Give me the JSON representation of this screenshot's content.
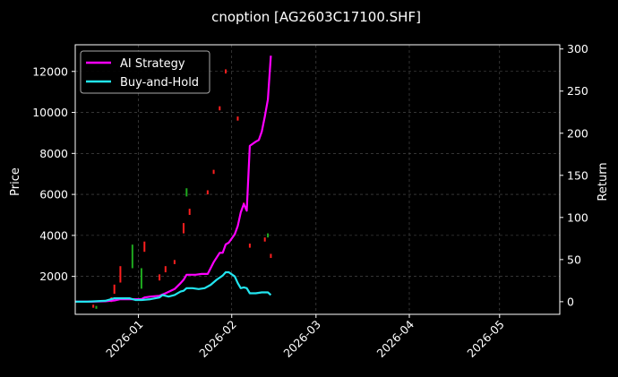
{
  "chart_data": {
    "type": "line",
    "title": "cnoption [AG2603C17100.SHF]",
    "ylabel": "Price",
    "y2label": "Return",
    "ylim": [
      150,
      13300
    ],
    "y2lim": [
      -15,
      305
    ],
    "yticks": [
      2000,
      4000,
      6000,
      8000,
      10000,
      12000
    ],
    "y2ticks": [
      0,
      50,
      100,
      150,
      200,
      250,
      300
    ],
    "xlim": [
      "2025-12-11",
      "2026-05-21"
    ],
    "xticks": [
      "2026-01",
      "2026-02",
      "2026-03",
      "2026-04",
      "2026-05"
    ],
    "grid": true,
    "legend_position": "top-left",
    "colors": {
      "background": "#000000",
      "ai_strategy": "#ff00ff",
      "buy_and_hold": "#22e5f0",
      "candle_up": "#ff1f1f",
      "candle_down": "#1faa1f"
    },
    "series": [
      {
        "name": "AI Strategy",
        "axis": "return",
        "points": [
          [
            "2025-12-11",
            0
          ],
          [
            "2025-12-16",
            0
          ],
          [
            "2025-12-21",
            0.5
          ],
          [
            "2025-12-24",
            1.5
          ],
          [
            "2025-12-26",
            3
          ],
          [
            "2025-12-30",
            3
          ],
          [
            "2026-01-02",
            3
          ],
          [
            "2026-01-03",
            5
          ],
          [
            "2026-01-05",
            6
          ],
          [
            "2026-01-08",
            7
          ],
          [
            "2026-01-10",
            10
          ],
          [
            "2026-01-13",
            15
          ],
          [
            "2026-01-15",
            22
          ],
          [
            "2026-01-16",
            26
          ],
          [
            "2026-01-17",
            32
          ],
          [
            "2026-01-20",
            32
          ],
          [
            "2026-01-22",
            33
          ],
          [
            "2026-01-24",
            33
          ],
          [
            "2026-01-26",
            47
          ],
          [
            "2026-01-28",
            58
          ],
          [
            "2026-01-29",
            58
          ],
          [
            "2026-01-30",
            68
          ],
          [
            "2026-01-31",
            70
          ],
          [
            "2026-02-02",
            80
          ],
          [
            "2026-02-03",
            90
          ],
          [
            "2026-02-04",
            106
          ],
          [
            "2026-02-05",
            116
          ],
          [
            "2026-02-06",
            108
          ],
          [
            "2026-02-07",
            185
          ],
          [
            "2026-02-09",
            190
          ],
          [
            "2026-02-10",
            192
          ],
          [
            "2026-02-11",
            202
          ],
          [
            "2026-02-12",
            220
          ],
          [
            "2026-02-13",
            240
          ],
          [
            "2026-02-14",
            292
          ]
        ]
      },
      {
        "name": "Buy-and-Hold",
        "axis": "return",
        "points": [
          [
            "2025-12-11",
            0
          ],
          [
            "2025-12-15",
            0
          ],
          [
            "2025-12-18",
            0.5
          ],
          [
            "2025-12-21",
            1
          ],
          [
            "2025-12-24",
            4
          ],
          [
            "2025-12-26",
            4
          ],
          [
            "2025-12-29",
            4
          ],
          [
            "2025-12-31",
            2
          ],
          [
            "2026-01-02",
            2
          ],
          [
            "2026-01-05",
            3
          ],
          [
            "2026-01-08",
            5
          ],
          [
            "2026-01-09",
            8
          ],
          [
            "2026-01-11",
            6
          ],
          [
            "2026-01-13",
            8
          ],
          [
            "2026-01-15",
            12
          ],
          [
            "2026-01-16",
            13
          ],
          [
            "2026-01-17",
            16
          ],
          [
            "2026-01-19",
            16
          ],
          [
            "2026-01-21",
            15
          ],
          [
            "2026-01-23",
            16
          ],
          [
            "2026-01-25",
            20
          ],
          [
            "2026-01-27",
            26
          ],
          [
            "2026-01-29",
            31
          ],
          [
            "2026-01-30",
            35
          ],
          [
            "2026-01-31",
            35
          ],
          [
            "2026-02-02",
            30
          ],
          [
            "2026-02-03",
            22
          ],
          [
            "2026-02-04",
            16
          ],
          [
            "2026-02-05",
            17
          ],
          [
            "2026-02-06",
            16
          ],
          [
            "2026-02-07",
            10
          ],
          [
            "2026-02-09",
            10
          ],
          [
            "2026-02-11",
            11
          ],
          [
            "2026-02-13",
            11
          ],
          [
            "2026-02-14",
            8
          ]
        ]
      }
    ],
    "candles": [
      {
        "date": "2025-12-17",
        "low": 470,
        "high": 620,
        "color": "up"
      },
      {
        "date": "2025-12-18",
        "low": 420,
        "high": 560,
        "color": "down"
      },
      {
        "date": "2025-12-23",
        "low": 750,
        "high": 980,
        "color": "up"
      },
      {
        "date": "2025-12-24",
        "low": 1150,
        "high": 1600,
        "color": "up"
      },
      {
        "date": "2025-12-26",
        "low": 1700,
        "high": 2500,
        "color": "up"
      },
      {
        "date": "2025-12-30",
        "low": 2400,
        "high": 3550,
        "color": "down"
      },
      {
        "date": "2026-01-02",
        "low": 1400,
        "high": 2400,
        "color": "down"
      },
      {
        "date": "2026-01-03",
        "low": 3200,
        "high": 3700,
        "color": "up"
      },
      {
        "date": "2026-01-08",
        "low": 1800,
        "high": 2100,
        "color": "up"
      },
      {
        "date": "2026-01-10",
        "low": 2200,
        "high": 2500,
        "color": "up"
      },
      {
        "date": "2026-01-13",
        "low": 2600,
        "high": 2800,
        "color": "up"
      },
      {
        "date": "2026-01-16",
        "low": 4100,
        "high": 4600,
        "color": "up"
      },
      {
        "date": "2026-01-17",
        "low": 5900,
        "high": 6300,
        "color": "down"
      },
      {
        "date": "2026-01-18",
        "low": 5000,
        "high": 5300,
        "color": "up"
      },
      {
        "date": "2026-01-24",
        "low": 6000,
        "high": 6200,
        "color": "up"
      },
      {
        "date": "2026-01-26",
        "low": 7000,
        "high": 7200,
        "color": "up"
      },
      {
        "date": "2026-01-28",
        "low": 10100,
        "high": 10300,
        "color": "up"
      },
      {
        "date": "2026-01-30",
        "low": 11900,
        "high": 12100,
        "color": "up"
      },
      {
        "date": "2026-02-03",
        "low": 9600,
        "high": 9800,
        "color": "up"
      },
      {
        "date": "2026-02-05",
        "low": 5400,
        "high": 5600,
        "color": "up"
      },
      {
        "date": "2026-02-07",
        "low": 3400,
        "high": 3600,
        "color": "up"
      },
      {
        "date": "2026-02-12",
        "low": 3700,
        "high": 3900,
        "color": "up"
      },
      {
        "date": "2026-02-13",
        "low": 3900,
        "high": 4100,
        "color": "down"
      },
      {
        "date": "2026-02-14",
        "low": 2900,
        "high": 3100,
        "color": "up"
      }
    ]
  }
}
